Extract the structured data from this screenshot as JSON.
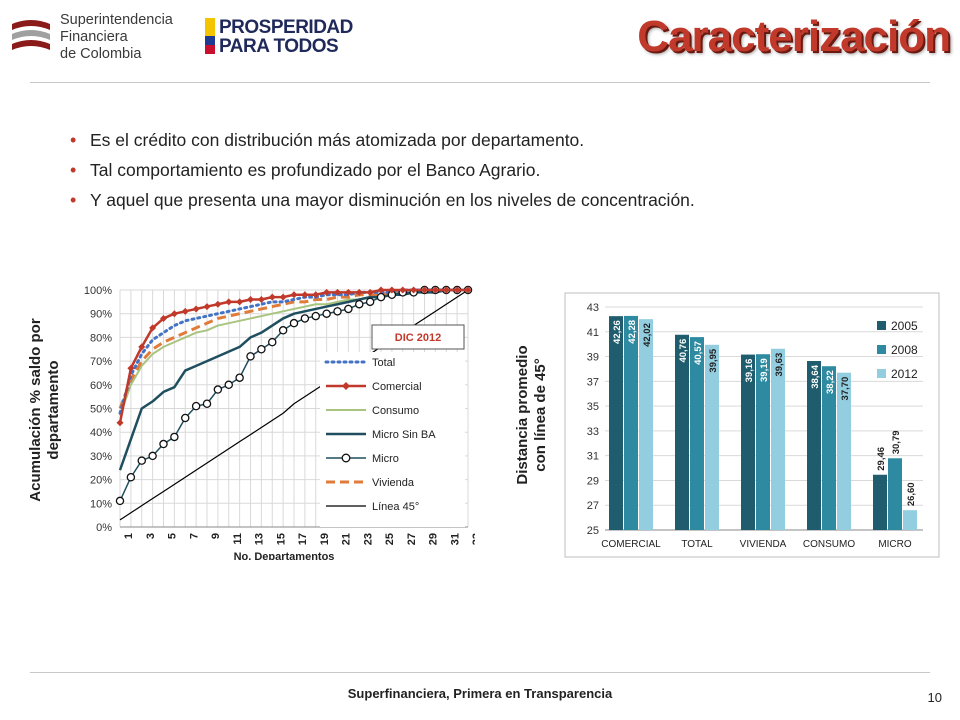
{
  "header": {
    "org_line1": "Superintendencia",
    "org_line2": "Financiera",
    "org_line3": "de Colombia",
    "program_line1": "PROSPERIDAD",
    "program_line2": "PARA TODOS",
    "title": "Caracterización"
  },
  "bullets": [
    "Es el crédito con distribución más atomizada por departamento.",
    "Tal comportamiento es profundizado por el Banco Agrario.",
    "Y aquel que presenta una mayor disminución en los niveles de concentración."
  ],
  "footer": {
    "text": "Superfinanciera, Primera en Transparencia",
    "page": "10"
  },
  "colors": {
    "title": "#c0392b",
    "total": "#4472c4",
    "comercial": "#c0392b",
    "consumo": "#a9c47f",
    "micro_sin_ba": "#1f4e5f",
    "micro": "#1f4e5f",
    "vivienda": "#e07b39",
    "linea45": "#000000",
    "bar2005": "#1f5c6e",
    "bar2008": "#2e8aa0",
    "bar2012": "#92cde0"
  },
  "chart_data": [
    {
      "type": "line",
      "title": "",
      "xlabel": "No. Departamentos",
      "ylabel": "Acumulación % saldo por departamento",
      "annotation": "DIC 2012",
      "x": [
        1,
        2,
        3,
        4,
        5,
        6,
        7,
        8,
        9,
        10,
        11,
        12,
        13,
        14,
        15,
        16,
        17,
        18,
        19,
        20,
        21,
        22,
        23,
        24,
        25,
        26,
        27,
        28,
        29,
        30,
        31,
        32,
        33
      ],
      "x_tick_labels": [
        "1",
        "3",
        "5",
        "7",
        "9",
        "11",
        "13",
        "15",
        "17",
        "19",
        "21",
        "23",
        "25",
        "27",
        "29",
        "31",
        "33"
      ],
      "x_tick_values": [
        1,
        3,
        5,
        7,
        9,
        11,
        13,
        15,
        17,
        19,
        21,
        23,
        25,
        27,
        29,
        31,
        33
      ],
      "y_tick_labels": [
        "0%",
        "10%",
        "20%",
        "30%",
        "40%",
        "50%",
        "60%",
        "70%",
        "80%",
        "90%",
        "100%"
      ],
      "ylim": [
        0,
        100
      ],
      "xlim": [
        1,
        33
      ],
      "grid": true,
      "legend_position": "right",
      "series": [
        {
          "name": "Total",
          "key": "total",
          "values": [
            48,
            64,
            73,
            79,
            82,
            85,
            87,
            88,
            89,
            90,
            91,
            92,
            93,
            94,
            95,
            95,
            96,
            97,
            97,
            98,
            98,
            98,
            99,
            99,
            99,
            99,
            100,
            100,
            100,
            100,
            100,
            100,
            100
          ]
        },
        {
          "name": "Comercial",
          "key": "comercial",
          "values": [
            44,
            67,
            76,
            84,
            88,
            90,
            91,
            92,
            93,
            94,
            95,
            95,
            96,
            96,
            97,
            97,
            98,
            98,
            98,
            99,
            99,
            99,
            99,
            99,
            100,
            100,
            100,
            100,
            100,
            100,
            100,
            100,
            100
          ]
        },
        {
          "name": "Consumo",
          "key": "consumo",
          "values": [
            47,
            60,
            68,
            73,
            76,
            78,
            80,
            82,
            83,
            85,
            86,
            87,
            88,
            89,
            90,
            91,
            92,
            93,
            94,
            94,
            95,
            96,
            96,
            97,
            97,
            98,
            98,
            99,
            99,
            99,
            100,
            100,
            100
          ]
        },
        {
          "name": "Micro Sin BA",
          "key": "micro_sin_ba",
          "values": [
            24,
            37,
            50,
            53,
            57,
            59,
            66,
            68,
            70,
            72,
            74,
            76,
            80,
            82,
            85,
            88,
            90,
            91,
            92,
            93,
            94,
            95,
            96,
            97,
            97,
            98,
            98,
            99,
            99,
            99,
            100,
            100,
            100
          ]
        },
        {
          "name": "Micro",
          "key": "micro",
          "values": [
            11,
            21,
            28,
            30,
            35,
            38,
            46,
            51,
            52,
            58,
            60,
            63,
            72,
            75,
            78,
            83,
            86,
            88,
            89,
            90,
            91,
            92,
            94,
            95,
            97,
            98,
            99,
            99,
            100,
            100,
            100,
            100,
            100
          ]
        },
        {
          "name": "Vivienda",
          "key": "vivienda",
          "values": [
            50,
            62,
            70,
            75,
            78,
            80,
            82,
            84,
            86,
            88,
            89,
            90,
            91,
            92,
            93,
            94,
            95,
            95,
            96,
            96,
            97,
            97,
            98,
            98,
            98,
            99,
            99,
            99,
            100,
            100,
            100,
            100,
            100
          ]
        },
        {
          "name": "Línea 45°",
          "key": "linea45",
          "values": [
            3,
            6,
            9,
            12,
            15,
            18,
            21,
            24,
            27,
            30,
            33,
            36,
            39,
            42,
            45,
            48,
            52,
            55,
            58,
            61,
            64,
            67,
            70,
            73,
            76,
            79,
            82,
            85,
            88,
            91,
            94,
            97,
            100
          ]
        }
      ]
    },
    {
      "type": "bar",
      "title": "",
      "ylabel": "Distancia promedio con línea de 45°",
      "categories": [
        "COMERCIAL",
        "TOTAL",
        "VIVIENDA",
        "CONSUMO",
        "MICRO"
      ],
      "ylim": [
        25,
        43
      ],
      "y_tick_labels": [
        "25",
        "27",
        "29",
        "31",
        "33",
        "35",
        "37",
        "39",
        "41",
        "43"
      ],
      "legend_position": "right",
      "series": [
        {
          "name": "2005",
          "key": "bar2005",
          "values": [
            42.26,
            40.76,
            39.16,
            38.64,
            29.46
          ],
          "labels": [
            "42,26",
            "40,76",
            "39,16",
            "38,64",
            "29,46"
          ]
        },
        {
          "name": "2008",
          "key": "bar2008",
          "values": [
            42.28,
            40.57,
            39.19,
            38.22,
            30.79
          ],
          "labels": [
            "42,28",
            "40,57",
            "39,19",
            "38,22",
            "30,79"
          ]
        },
        {
          "name": "2012",
          "key": "bar2012",
          "values": [
            42.02,
            39.95,
            39.63,
            37.7,
            26.6
          ],
          "labels": [
            "42,02",
            "39,95",
            "39,63",
            "37,70",
            "26,60"
          ]
        }
      ]
    }
  ]
}
